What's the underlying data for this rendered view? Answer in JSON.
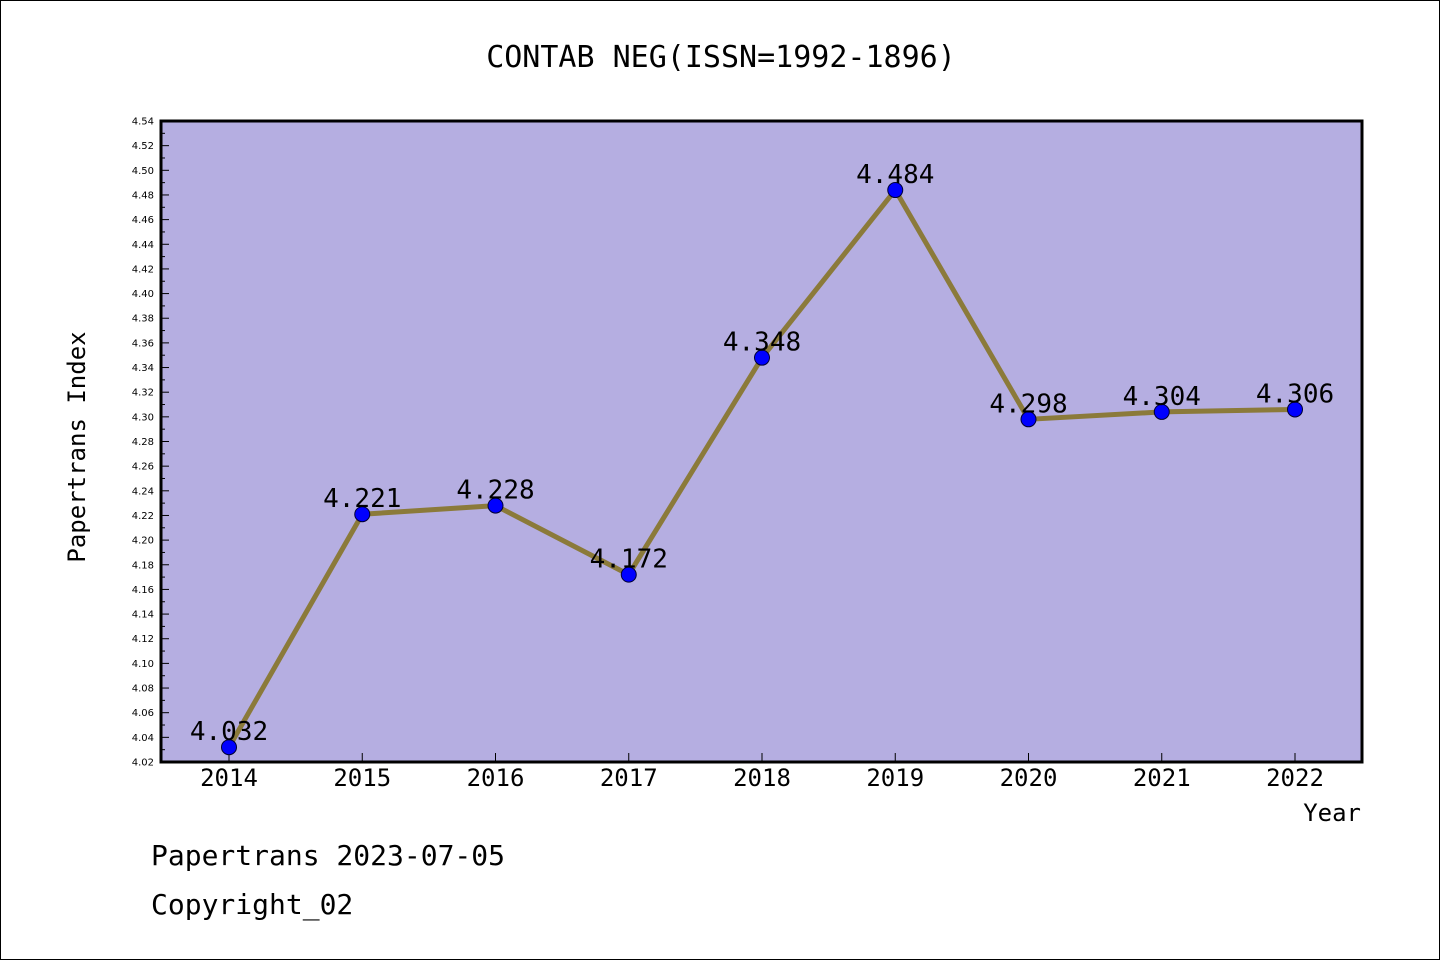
{
  "chart_data": {
    "type": "line",
    "title": "CONTAB NEG(ISSN=1992-1896)",
    "xlabel": "Year",
    "ylabel": "Papertrans Index",
    "categories": [
      "2014",
      "2015",
      "2016",
      "2017",
      "2018",
      "2019",
      "2020",
      "2021",
      "2022"
    ],
    "values": [
      4.032,
      4.221,
      4.228,
      4.172,
      4.348,
      4.484,
      4.298,
      4.304,
      4.306
    ],
    "data_labels": [
      "4.032",
      "4.221",
      "4.228",
      "4.172",
      "4.348",
      "4.484",
      "4.298",
      "4.304",
      "4.306"
    ],
    "ylim": [
      4.02,
      4.54
    ],
    "ytick_step": 0.02,
    "grid": false,
    "colors": {
      "plot_background": "#b5aee1",
      "line": "#8b7a3a",
      "marker": "#0000ff"
    }
  },
  "footer": {
    "date_line": "Papertrans 2023-07-05",
    "copyright_line": "Copyright_02"
  }
}
